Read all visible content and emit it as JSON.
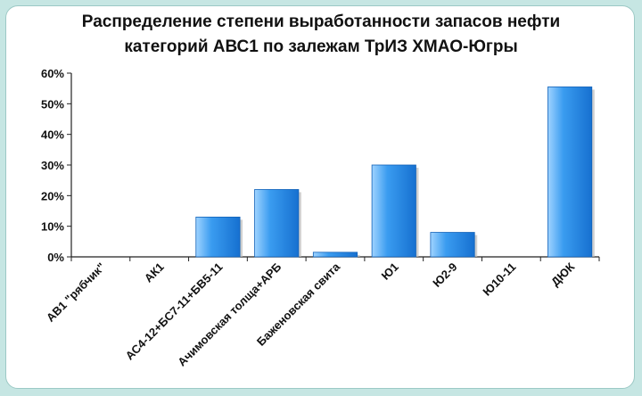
{
  "chart_data": {
    "type": "bar",
    "title": [
      "Распределение степени выработанности запасов нефти",
      "категорий АВС1 по залежам ТрИЗ ХМАО-Югры"
    ],
    "categories": [
      "АВ1 \"рябчик\"",
      "АК1",
      "АС4-12+БС7-11+БВ5-11",
      "Ачимовская толща+АРБ",
      "Баженовская свита",
      "Ю1",
      "Ю2-9",
      "Ю10-11",
      "ДЮК"
    ],
    "values": [
      0,
      0,
      13,
      22,
      1.5,
      30,
      8,
      0,
      55.5
    ],
    "ylim": [
      0,
      60
    ],
    "yticks": [
      0,
      10,
      20,
      30,
      40,
      50,
      60
    ],
    "ytick_labels": [
      "0%",
      "10%",
      "20%",
      "30%",
      "40%",
      "50%",
      "60%"
    ],
    "xlabel": "",
    "ylabel": "",
    "grid": false,
    "bar_color": "#2a8ee8"
  }
}
